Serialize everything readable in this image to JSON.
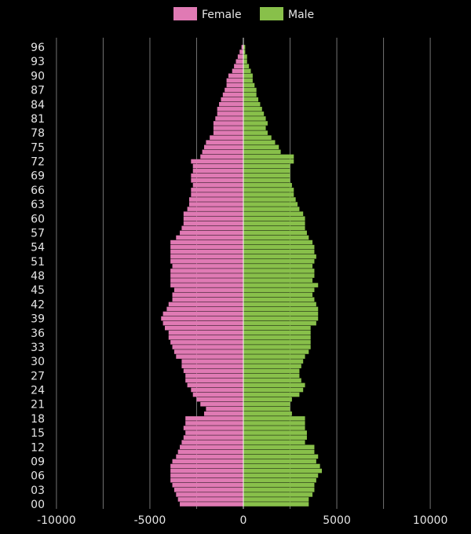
{
  "chart_data": {
    "type": "bar",
    "orientation": "horizontal",
    "layout": "population-pyramid",
    "legend": {
      "position": "top"
    },
    "series": [
      {
        "name": "Female",
        "color": "#e07ab4",
        "values": [
          -3400,
          -3500,
          -3600,
          -3700,
          -3800,
          -3900,
          -3900,
          -3900,
          -3900,
          -3800,
          -3600,
          -3500,
          -3400,
          -3300,
          -3200,
          -3100,
          -3200,
          -3100,
          -3100,
          -2100,
          -2000,
          -2300,
          -2500,
          -2700,
          -2800,
          -3000,
          -3100,
          -3100,
          -3200,
          -3300,
          -3300,
          -3600,
          -3700,
          -3800,
          -3900,
          -4000,
          -4000,
          -4200,
          -4300,
          -4400,
          -4300,
          -4100,
          -4000,
          -3800,
          -3800,
          -3700,
          -3900,
          -3900,
          -3900,
          -3900,
          -3800,
          -3900,
          -3900,
          -3900,
          -3900,
          -3900,
          -3600,
          -3400,
          -3300,
          -3200,
          -3200,
          -3200,
          -3000,
          -2900,
          -2900,
          -2800,
          -2800,
          -2700,
          -2800,
          -2800,
          -2700,
          -2700,
          -2800,
          -2300,
          -2200,
          -2100,
          -2000,
          -1800,
          -1600,
          -1600,
          -1600,
          -1500,
          -1400,
          -1400,
          -1300,
          -1200,
          -1100,
          -1000,
          -900,
          -900,
          -800,
          -600,
          -500,
          -400,
          -300,
          -200,
          -100
        ]
      },
      {
        "name": "Male",
        "color": "#88c04a",
        "values": [
          3500,
          3500,
          3700,
          3800,
          3800,
          3900,
          4000,
          4200,
          4100,
          3900,
          4000,
          3800,
          3800,
          3300,
          3400,
          3400,
          3300,
          3300,
          3300,
          2600,
          2500,
          2500,
          2600,
          3000,
          3200,
          3300,
          3100,
          3000,
          3000,
          3100,
          3200,
          3300,
          3500,
          3600,
          3600,
          3600,
          3600,
          3600,
          3900,
          4000,
          4000,
          4000,
          3900,
          3800,
          3700,
          3800,
          4000,
          3700,
          3800,
          3800,
          3700,
          3800,
          3900,
          3800,
          3800,
          3700,
          3500,
          3400,
          3300,
          3300,
          3300,
          3200,
          3000,
          2900,
          2800,
          2700,
          2700,
          2600,
          2500,
          2500,
          2500,
          2500,
          2700,
          2700,
          2000,
          1900,
          1700,
          1500,
          1300,
          1200,
          1300,
          1200,
          1100,
          1000,
          900,
          800,
          700,
          700,
          600,
          500,
          500,
          400,
          300,
          200,
          200,
          100,
          100
        ]
      }
    ],
    "xlim": [
      -10500,
      10500
    ],
    "xticks": [
      -10000,
      -5000,
      0,
      5000,
      10000
    ],
    "xtick_labels": [
      "-10000",
      "-5000",
      "0",
      "5000",
      "10000"
    ],
    "gridlines": [
      -10000,
      -7500,
      -5000,
      -2500,
      2500,
      5000,
      7500,
      10000
    ],
    "ytick_labels": [
      "00",
      "03",
      "06",
      "09",
      "12",
      "15",
      "18",
      "21",
      "24",
      "27",
      "30",
      "33",
      "36",
      "39",
      "42",
      "45",
      "48",
      "51",
      "54",
      "57",
      "60",
      "63",
      "66",
      "69",
      "72",
      "75",
      "78",
      "81",
      "84",
      "87",
      "90",
      "93",
      "96"
    ],
    "ytick_step": 3,
    "age_min": 0,
    "age_max": 96,
    "grid": true,
    "background": "#000000"
  }
}
